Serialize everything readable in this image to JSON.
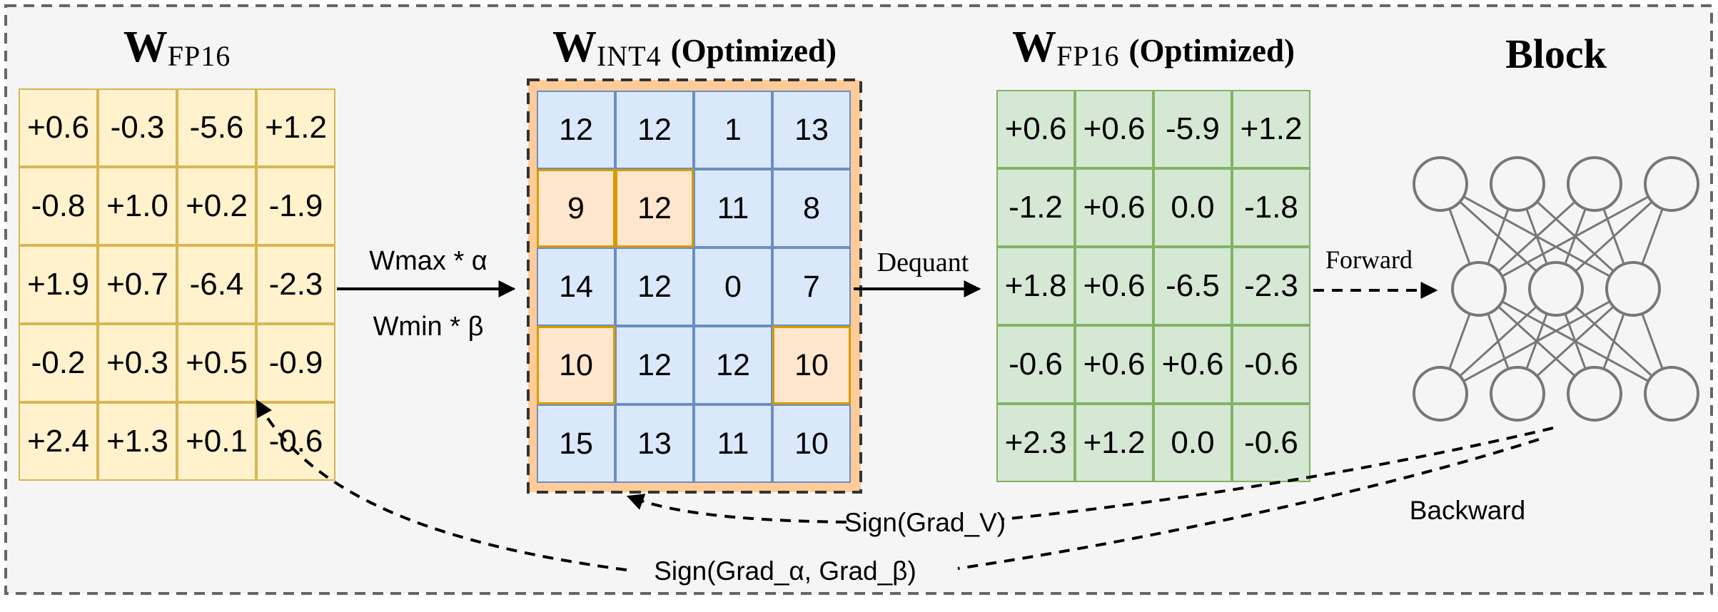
{
  "figure": {
    "matrices": {
      "fp16": {
        "title": {
          "main": "W",
          "sub": "FP16",
          "suffix": ""
        },
        "values": [
          [
            "+0.6",
            "-0.3",
            "-5.6",
            "+1.2"
          ],
          [
            "-0.8",
            "+1.0",
            "+0.2",
            "-1.9"
          ],
          [
            "+1.9",
            "+0.7",
            "-6.4",
            "-2.3"
          ],
          [
            "-0.2",
            "+0.3",
            "+0.5",
            "-0.9"
          ],
          [
            "+2.4",
            "+1.3",
            "+0.1",
            "-0.6"
          ]
        ]
      },
      "int4": {
        "title": {
          "main": "W",
          "sub": "INT4",
          "suffix": "(Optimized)"
        },
        "values": [
          [
            "12",
            "12",
            "1",
            "13"
          ],
          [
            "9",
            "12",
            "11",
            "8"
          ],
          [
            "14",
            "12",
            "0",
            "7"
          ],
          [
            "10",
            "12",
            "12",
            "10"
          ],
          [
            "15",
            "13",
            "11",
            "10"
          ]
        ],
        "highlighted_cells": [
          [
            1,
            0
          ],
          [
            1,
            1
          ],
          [
            3,
            0
          ],
          [
            3,
            3
          ]
        ]
      },
      "fp16_optimized": {
        "title": {
          "main": "W",
          "sub": "FP16",
          "suffix": "(Optimized)"
        },
        "values": [
          [
            "+0.6",
            "+0.6",
            "-5.9",
            "+1.2"
          ],
          [
            "-1.2",
            "+0.6",
            "0.0",
            "-1.8"
          ],
          [
            "+1.8",
            "+0.6",
            "-6.5",
            "-2.3"
          ],
          [
            "-0.6",
            "+0.6",
            "+0.6",
            "-0.6"
          ],
          [
            "+2.3",
            "+1.2",
            "0.0",
            "-0.6"
          ]
        ]
      }
    },
    "block": {
      "title": "Block",
      "layers": [
        4,
        3,
        4
      ]
    },
    "labels": {
      "quant_top": "Wmax * α",
      "quant_bottom": "Wmin * β",
      "dequant": "Dequant",
      "forward": "Forward",
      "backward": "Backward",
      "grad_v": "Sign(Grad_V)",
      "grad_alpha_beta": "Sign(Grad_α, Grad_β)"
    },
    "colors": {
      "background": "#f5f5f5",
      "fp16_fill": "#fff2cc",
      "fp16_border": "#d6b656",
      "int4_container_fill": "#ffcc99",
      "int4_cell_fill": "#dae8fc",
      "int4_cell_border": "#6c8ebf",
      "int4_highlight_fill": "#ffe6cc",
      "int4_highlight_border": "#d79b00",
      "dequant_fill": "#d5e8d4",
      "dequant_border": "#82b366",
      "network_stroke": "#777777",
      "arrow_color": "#000000",
      "frame_border": "#666666"
    }
  }
}
